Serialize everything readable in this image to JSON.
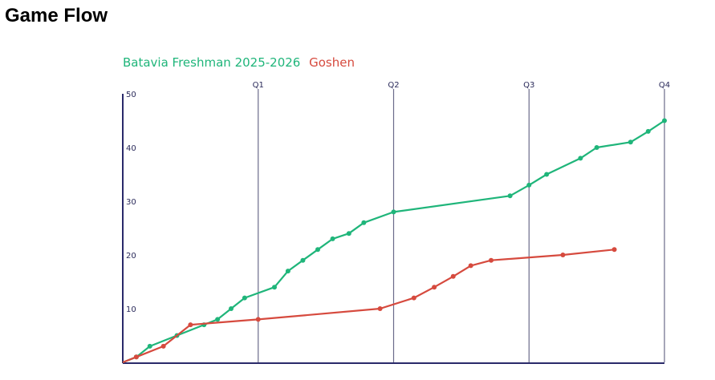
{
  "page": {
    "title": "Game Flow"
  },
  "chart_data": {
    "type": "line",
    "title": "",
    "xlabel": "",
    "ylabel": "",
    "ylim": [
      0,
      50
    ],
    "xlim": [
      0,
      4
    ],
    "y_ticks": [
      10,
      20,
      30,
      40,
      50
    ],
    "quarter_markers": [
      {
        "label": "Q1",
        "x": 1
      },
      {
        "label": "Q2",
        "x": 2
      },
      {
        "label": "Q3",
        "x": 3
      },
      {
        "label": "Q4",
        "x": 4
      }
    ],
    "grid": false,
    "legend_position": "top-left",
    "series": [
      {
        "name": "Batavia Freshman 2025-2026",
        "color": "#1fb57a",
        "points": [
          [
            0.0,
            0
          ],
          [
            0.1,
            1
          ],
          [
            0.2,
            3
          ],
          [
            0.4,
            5
          ],
          [
            0.6,
            7
          ],
          [
            0.7,
            8
          ],
          [
            0.8,
            10
          ],
          [
            0.9,
            12
          ],
          [
            1.12,
            14
          ],
          [
            1.22,
            17
          ],
          [
            1.33,
            19
          ],
          [
            1.44,
            21
          ],
          [
            1.55,
            23
          ],
          [
            1.67,
            24
          ],
          [
            1.78,
            26
          ],
          [
            2.0,
            28
          ],
          [
            2.86,
            31
          ],
          [
            3.0,
            33
          ],
          [
            3.13,
            35
          ],
          [
            3.38,
            38
          ],
          [
            3.5,
            40
          ],
          [
            3.75,
            41
          ],
          [
            3.88,
            43
          ],
          [
            4.0,
            45
          ]
        ]
      },
      {
        "name": "Goshen",
        "color": "#d64a3e",
        "points": [
          [
            0.0,
            0
          ],
          [
            0.1,
            1
          ],
          [
            0.3,
            3
          ],
          [
            0.5,
            7
          ],
          [
            1.0,
            8
          ],
          [
            1.9,
            10
          ],
          [
            2.15,
            12
          ],
          [
            2.3,
            14
          ],
          [
            2.44,
            16
          ],
          [
            2.57,
            18
          ],
          [
            2.72,
            19
          ],
          [
            3.25,
            20
          ],
          [
            3.63,
            21
          ]
        ]
      }
    ]
  }
}
